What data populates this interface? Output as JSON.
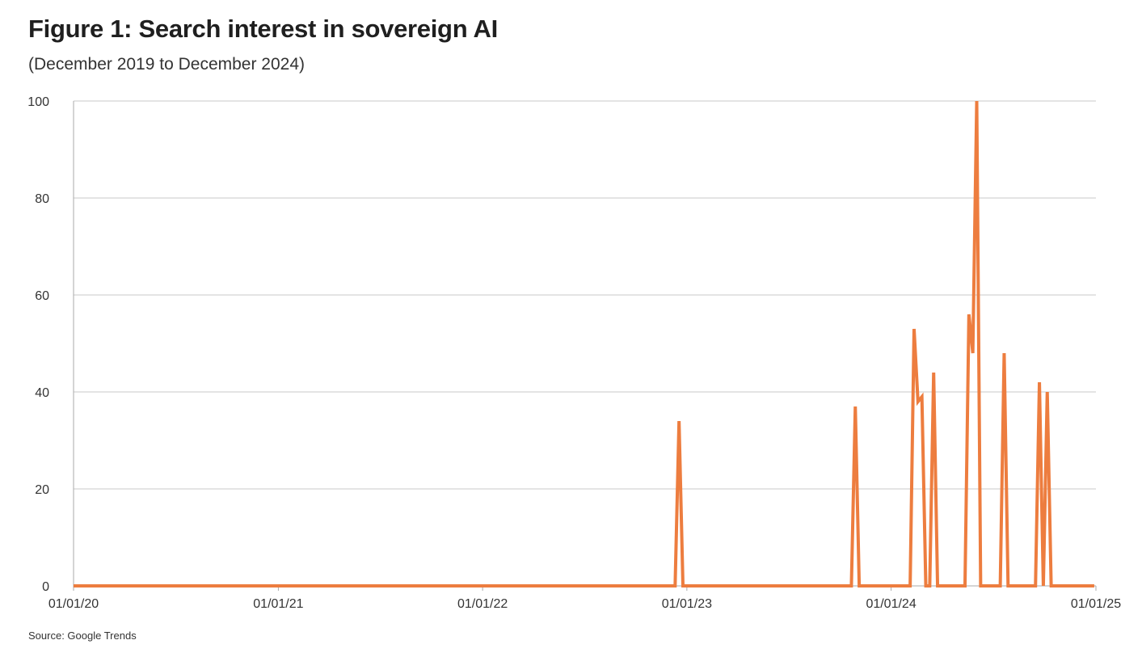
{
  "figure": {
    "title": "Figure 1: Search interest in sovereign AI",
    "subtitle": "(December 2019 to December 2024)",
    "source": "Source: Google Trends"
  },
  "colors": {
    "series": "#ED7D3F",
    "grid": "#C8C8C8",
    "axis": "#AAAAAA",
    "text": "#333333"
  },
  "chart_data": {
    "type": "line",
    "title": "Figure 1: Search interest in sovereign AI",
    "subtitle": "(December 2019 to December 2024)",
    "xlabel": "",
    "ylabel": "",
    "x_axis_type": "date",
    "xlim": [
      "2020-01-01",
      "2025-01-01"
    ],
    "ylim": [
      0,
      100
    ],
    "y_ticks": [
      0,
      20,
      40,
      60,
      80,
      100
    ],
    "x_tick_values": [
      "2020-01-01",
      "2021-01-01",
      "2022-01-01",
      "2023-01-01",
      "2024-01-01",
      "2025-01-01"
    ],
    "x_tick_labels": [
      "01/01/20",
      "01/01/21",
      "01/01/22",
      "01/01/23",
      "01/01/24",
      "01/01/25"
    ],
    "grid": "horizontal",
    "legend": "none",
    "series": [
      {
        "color": "#ED7D3F",
        "points": [
          [
            "2020-01-01",
            0
          ],
          [
            "2022-12-11",
            0
          ],
          [
            "2022-12-18",
            34
          ],
          [
            "2022-12-25",
            0
          ],
          [
            "2023-10-22",
            0
          ],
          [
            "2023-10-29",
            37
          ],
          [
            "2023-11-05",
            0
          ],
          [
            "2024-02-04",
            0
          ],
          [
            "2024-02-11",
            53
          ],
          [
            "2024-02-18",
            38
          ],
          [
            "2024-02-25",
            39
          ],
          [
            "2024-03-03",
            0
          ],
          [
            "2024-03-10",
            0
          ],
          [
            "2024-03-17",
            44
          ],
          [
            "2024-03-24",
            0
          ],
          [
            "2024-05-12",
            0
          ],
          [
            "2024-05-19",
            56
          ],
          [
            "2024-05-26",
            48
          ],
          [
            "2024-06-02",
            100
          ],
          [
            "2024-06-09",
            0
          ],
          [
            "2024-07-14",
            0
          ],
          [
            "2024-07-21",
            48
          ],
          [
            "2024-07-28",
            0
          ],
          [
            "2024-09-15",
            0
          ],
          [
            "2024-09-22",
            42
          ],
          [
            "2024-09-29",
            0
          ],
          [
            "2024-10-06",
            40
          ],
          [
            "2024-10-13",
            0
          ],
          [
            "2024-12-29",
            0
          ]
        ]
      }
    ]
  }
}
